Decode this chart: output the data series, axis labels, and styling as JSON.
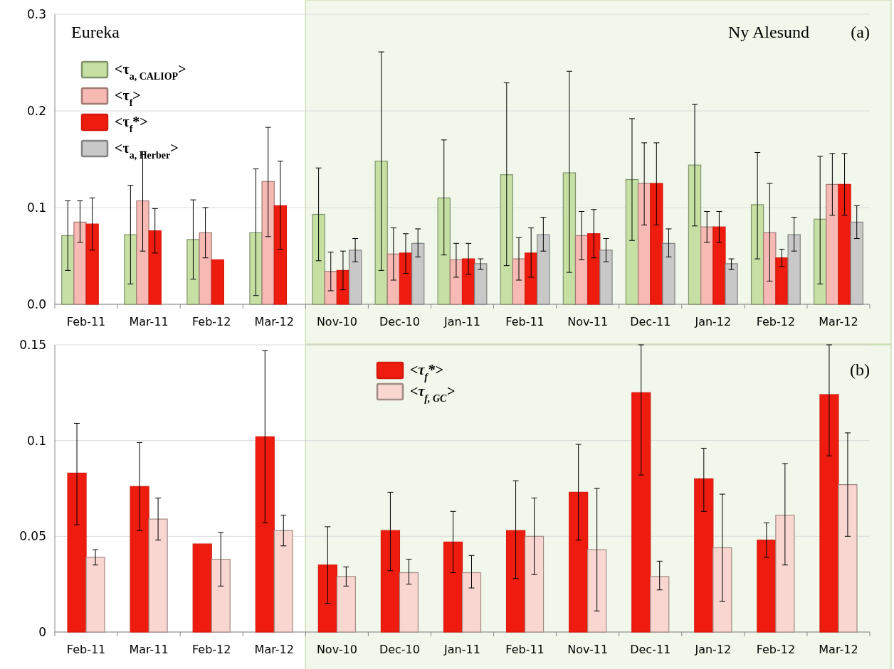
{
  "chart_data": [
    {
      "type": "bar",
      "categories": [
        "Feb-11",
        "Mar-11",
        "Feb-12",
        "Mar-12",
        "Nov-10",
        "Dec-10",
        "Jan-11",
        "Feb-11",
        "Nov-11",
        "Dec-11",
        "Jan-12",
        "Feb-12",
        "Mar-12"
      ],
      "series": [
        {
          "name": "<τ$_{a, CALIOP}$>",
          "color": "#c6e0a4",
          "values": [
            0.071,
            0.072,
            0.067,
            0.074,
            0.093,
            0.148,
            0.11,
            0.134,
            0.136,
            0.129,
            0.144,
            0.103,
            0.088
          ],
          "errors": [
            [
              0.035,
              0.107
            ],
            [
              0.021,
              0.123
            ],
            [
              0.026,
              0.108
            ],
            [
              0.009,
              0.14
            ],
            [
              0.045,
              0.141
            ],
            [
              0.035,
              0.261
            ],
            [
              0.051,
              0.17
            ],
            [
              0.04,
              0.229
            ],
            [
              0.033,
              0.241
            ],
            [
              0.066,
              0.192
            ],
            [
              0.081,
              0.207
            ],
            [
              0.047,
              0.157
            ],
            [
              0.021,
              0.153
            ]
          ]
        },
        {
          "name": "<τ$_{f}$>",
          "color": "#f7b9b3",
          "values": [
            0.085,
            0.107,
            0.074,
            0.127,
            0.034,
            0.052,
            0.046,
            0.047,
            0.071,
            0.125,
            0.08,
            0.074,
            0.124
          ],
          "errors": [
            [
              0.064,
              0.107
            ],
            [
              0.055,
              0.158
            ],
            [
              0.048,
              0.1
            ],
            [
              0.07,
              0.183
            ],
            [
              0.014,
              0.054
            ],
            [
              0.025,
              0.079
            ],
            [
              0.028,
              0.063
            ],
            [
              0.025,
              0.069
            ],
            [
              0.046,
              0.096
            ],
            [
              0.082,
              0.167
            ],
            [
              0.064,
              0.096
            ],
            [
              0.024,
              0.125
            ],
            [
              0.092,
              0.156
            ]
          ]
        },
        {
          "name": "<τ$_{f}$*>",
          "color": "#ee1c0e",
          "values": [
            0.083,
            0.076,
            0.046,
            0.102,
            0.035,
            0.053,
            0.047,
            0.053,
            0.073,
            0.125,
            0.08,
            0.048,
            0.124
          ],
          "errors": [
            [
              0.056,
              0.11
            ],
            [
              0.053,
              0.099
            ],
            null,
            [
              0.057,
              0.148
            ],
            [
              0.015,
              0.055
            ],
            [
              0.032,
              0.073
            ],
            [
              0.031,
              0.063
            ],
            [
              0.028,
              0.079
            ],
            [
              0.048,
              0.098
            ],
            [
              0.082,
              0.167
            ],
            [
              0.064,
              0.096
            ],
            [
              0.039,
              0.057
            ],
            [
              0.092,
              0.156
            ]
          ]
        },
        {
          "name": "<τ$_{a, Herber}$>",
          "color": "#c8c8c8",
          "values": [
            null,
            null,
            null,
            null,
            0.056,
            0.063,
            0.042,
            0.072,
            0.056,
            0.063,
            0.042,
            0.072,
            0.085
          ],
          "errors": [
            null,
            null,
            null,
            null,
            [
              0.044,
              0.068
            ],
            [
              0.049,
              0.078
            ],
            [
              0.036,
              0.047
            ],
            [
              0.055,
              0.09
            ],
            [
              0.044,
              0.068
            ],
            [
              0.049,
              0.078
            ],
            [
              0.036,
              0.047
            ],
            [
              0.055,
              0.09
            ],
            [
              0.068,
              0.102
            ]
          ]
        }
      ],
      "ylim": [
        0,
        0.3
      ],
      "yticks": [
        {
          "value": 0,
          "label": "0.0"
        },
        {
          "value": 0.1,
          "label": "0.1"
        },
        {
          "value": 0.2,
          "label": "0.2"
        },
        {
          "value": 0.3,
          "label": "0.3"
        }
      ],
      "grid": "y",
      "legend": "top left",
      "annotations": [
        "Eureka",
        "Ny Alesund",
        "(a)"
      ]
    },
    {
      "type": "bar",
      "categories": [
        "Feb-11",
        "Mar-11",
        "Feb-12",
        "Mar-12",
        "Nov-10",
        "Dec-10",
        "Jan-11",
        "Feb-11",
        "Nov-11",
        "Dec-11",
        "Jan-12",
        "Feb-12",
        "Mar-12"
      ],
      "series": [
        {
          "name": "<τ$_{f}$*>",
          "color": "#ee1c0e",
          "values": [
            0.083,
            0.076,
            0.046,
            0.102,
            0.035,
            0.053,
            0.047,
            0.053,
            0.073,
            0.125,
            0.08,
            0.048,
            0.124
          ],
          "errors": [
            [
              0.056,
              0.109
            ],
            [
              0.053,
              0.099
            ],
            null,
            [
              0.057,
              0.147
            ],
            [
              0.015,
              0.055
            ],
            [
              0.032,
              0.073
            ],
            [
              0.031,
              0.063
            ],
            [
              0.028,
              0.079
            ],
            [
              0.048,
              0.098
            ],
            [
              0.082,
              0.15
            ],
            [
              0.063,
              0.096
            ],
            [
              0.039,
              0.057
            ],
            [
              0.092,
              0.15
            ]
          ]
        },
        {
          "name": "<τ$_{f, GC}$>",
          "color": "#f9d6cf",
          "values": [
            0.039,
            0.059,
            0.038,
            0.053,
            0.029,
            0.031,
            0.031,
            0.05,
            0.043,
            0.029,
            0.044,
            0.061,
            0.077
          ],
          "errors": [
            [
              0.035,
              0.043
            ],
            [
              0.048,
              0.07
            ],
            [
              0.024,
              0.052
            ],
            [
              0.045,
              0.061
            ],
            [
              0.024,
              0.034
            ],
            [
              0.025,
              0.038
            ],
            [
              0.023,
              0.04
            ],
            [
              0.03,
              0.07
            ],
            [
              0.011,
              0.075
            ],
            [
              0.022,
              0.037
            ],
            [
              0.016,
              0.072
            ],
            [
              0.035,
              0.088
            ],
            [
              0.05,
              0.104
            ]
          ]
        }
      ],
      "ylim": [
        0,
        0.15
      ],
      "yticks": [
        0,
        0.05,
        0.1,
        0.15
      ],
      "grid": "y",
      "legend": "top",
      "annotations": [
        "(b)"
      ]
    }
  ]
}
